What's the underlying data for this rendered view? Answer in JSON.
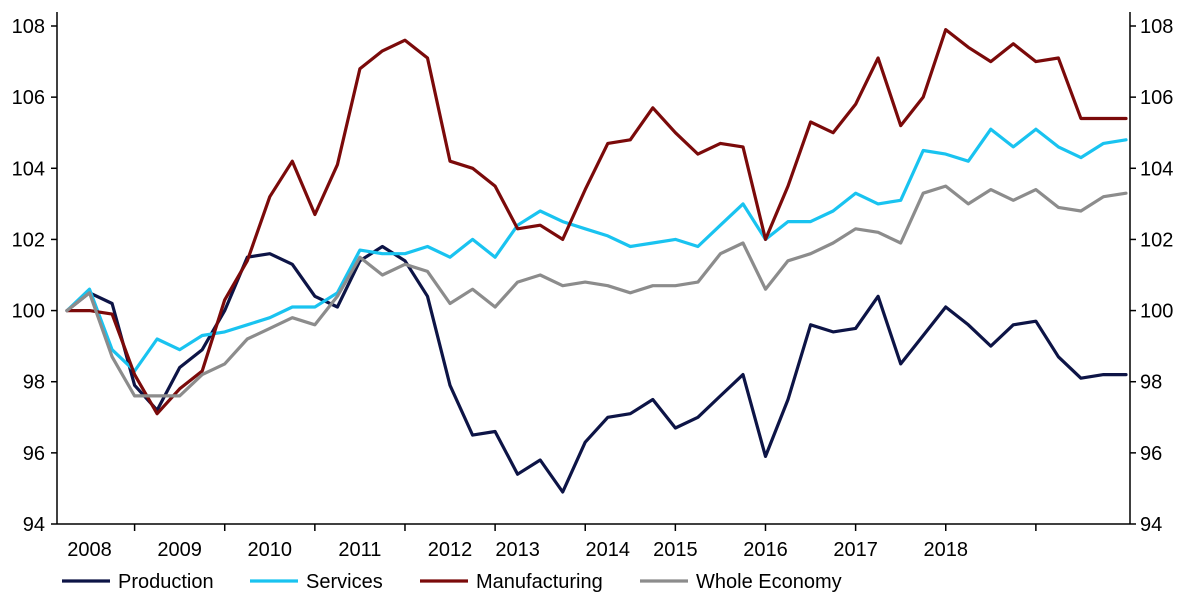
{
  "chart_data": {
    "type": "line",
    "title": "",
    "xlabel": "",
    "ylabel": "",
    "ylim": [
      94,
      108
    ],
    "yticks": [
      94,
      96,
      98,
      100,
      102,
      104,
      106,
      108
    ],
    "ytick_labels": [
      "94",
      "96",
      "98",
      "100",
      "102",
      "104",
      "106",
      "108"
    ],
    "secondary_yticks": [
      94,
      96,
      98,
      100,
      102,
      104,
      106,
      108
    ],
    "secondary_ytick_labels": [
      "94",
      "96",
      "98",
      "100",
      "102",
      "104",
      "106",
      "108"
    ],
    "xlim": [
      2008.0,
      2019.75
    ],
    "x_year_labels": [
      "2008",
      "2009",
      "2010",
      "2011",
      "2012",
      "2013",
      "2014",
      "2015",
      "2016",
      "2017",
      "2018"
    ],
    "x_year_label_positions": [
      2008.25,
      2009.25,
      2010.25,
      2011.25,
      2012.25,
      2013.0,
      2014.0,
      2014.75,
      2015.75,
      2016.75,
      2017.75
    ],
    "x_tick_marks": [
      2008.75,
      2009.75,
      2010.75,
      2011.75,
      2012.75,
      2013.75,
      2014.75,
      2015.75,
      2016.75,
      2017.75,
      2018.75
    ],
    "x": [
      2008.0,
      2008.25,
      2008.5,
      2008.75,
      2009.0,
      2009.25,
      2009.5,
      2009.75,
      2010.0,
      2010.25,
      2010.5,
      2010.75,
      2011.0,
      2011.25,
      2011.5,
      2011.75,
      2012.0,
      2012.25,
      2012.5,
      2012.75,
      2013.0,
      2013.25,
      2013.5,
      2013.75,
      2014.0,
      2014.25,
      2014.5,
      2014.75,
      2015.0,
      2015.25,
      2015.5,
      2015.75,
      2016.0,
      2016.25,
      2016.5,
      2016.75,
      2017.0,
      2017.25,
      2017.5,
      2017.75,
      2018.0,
      2018.25,
      2018.5,
      2018.75,
      2019.0,
      2019.25,
      2019.5,
      2019.75
    ],
    "series": [
      {
        "name": "Production",
        "color": "#0d1446",
        "values": [
          100.0,
          100.5,
          100.2,
          97.9,
          97.2,
          98.4,
          98.9,
          100.0,
          101.5,
          101.6,
          101.3,
          100.4,
          100.1,
          101.4,
          101.8,
          101.4,
          100.4,
          97.9,
          96.5,
          96.6,
          95.4,
          95.8,
          94.9,
          96.3,
          97.0,
          97.1,
          97.5,
          96.7,
          97.0,
          97.6,
          98.2,
          95.9,
          97.5,
          99.6,
          99.4,
          99.5,
          100.4,
          98.5,
          99.3,
          100.1,
          99.6,
          99.0,
          99.6,
          99.7,
          98.7,
          98.1,
          98.2,
          98.2
        ]
      },
      {
        "name": "Services",
        "color": "#19c3f0",
        "values": [
          100.0,
          100.6,
          98.9,
          98.3,
          99.2,
          98.9,
          99.3,
          99.4,
          99.6,
          99.8,
          100.1,
          100.1,
          100.5,
          101.7,
          101.6,
          101.6,
          101.8,
          101.5,
          102.0,
          101.5,
          102.4,
          102.8,
          102.5,
          102.3,
          102.1,
          101.8,
          101.9,
          102.0,
          101.8,
          102.4,
          103.0,
          102.0,
          102.5,
          102.5,
          102.8,
          103.3,
          103.0,
          103.1,
          104.5,
          104.4,
          104.2,
          105.1,
          104.6,
          105.1,
          104.6,
          104.3,
          104.7,
          104.8
        ]
      },
      {
        "name": "Manufacturing",
        "color": "#7b0a0a",
        "values": [
          100.0,
          100.0,
          99.9,
          98.2,
          97.1,
          97.8,
          98.3,
          100.3,
          101.4,
          103.2,
          104.2,
          102.7,
          104.1,
          106.8,
          107.3,
          107.6,
          107.1,
          104.2,
          104.0,
          103.5,
          102.3,
          102.4,
          102.0,
          103.4,
          104.7,
          104.8,
          105.7,
          105.0,
          104.4,
          104.7,
          104.6,
          102.0,
          103.5,
          105.3,
          105.0,
          105.8,
          107.1,
          105.2,
          106.0,
          107.9,
          107.4,
          107.0,
          107.5,
          107.0,
          107.1,
          105.4,
          105.4,
          105.4
        ]
      },
      {
        "name": "Whole Economy",
        "color": "#8c8c8c",
        "values": [
          100.0,
          100.5,
          98.7,
          97.6,
          97.6,
          97.6,
          98.2,
          98.5,
          99.2,
          99.5,
          99.8,
          99.6,
          100.4,
          101.5,
          101.0,
          101.3,
          101.1,
          100.2,
          100.6,
          100.1,
          100.8,
          101.0,
          100.7,
          100.8,
          100.7,
          100.5,
          100.7,
          100.7,
          100.8,
          101.6,
          101.9,
          100.6,
          101.4,
          101.6,
          101.9,
          102.3,
          102.2,
          101.9,
          103.3,
          103.5,
          103.0,
          103.4,
          103.1,
          103.4,
          102.9,
          102.8,
          103.2,
          103.3
        ]
      }
    ],
    "legend_position": "bottom",
    "grid": false
  }
}
